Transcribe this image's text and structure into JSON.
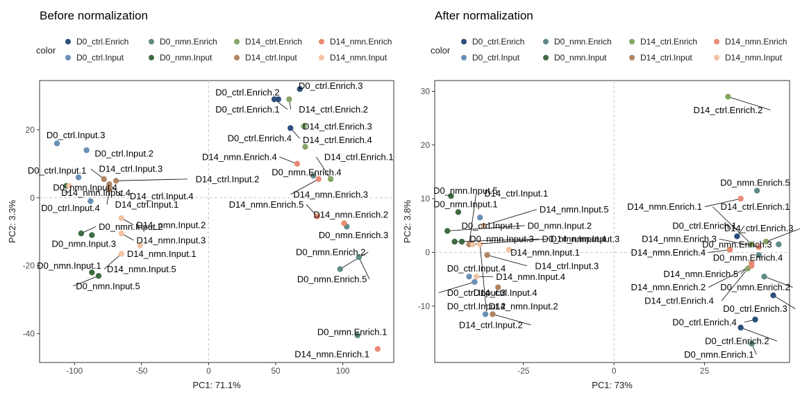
{
  "colors": {
    "D0_ctrl.Enrich": "#2c4f7c",
    "D0_ctrl.Input": "#6a8fb5",
    "D0_nmn.Enrich": "#5f8a86",
    "D0_nmn.Input": "#3e6b41",
    "D14_ctrl.Enrich": "#86a567",
    "D14_ctrl.Input": "#b08563",
    "D14_nmn.Enrich": "#e88a76",
    "D14_nmn.Input": "#f2c3a4"
  },
  "chart_data": [
    {
      "type": "scatter",
      "title": "Before normalization",
      "xlabel": "PC1: 71.1%",
      "ylabel": "PC2: 3.3%",
      "xlim": [
        -126,
        138
      ],
      "ylim": [
        -48.5,
        34.5
      ],
      "xticks": [
        -100,
        -50,
        0,
        50,
        100
      ],
      "yticks": [
        -40,
        -20,
        0,
        20
      ],
      "grid": "dashed zero lines only",
      "legend": {
        "title": "color",
        "position": "top",
        "entries": [
          "D0_ctrl.Enrich",
          "D0_nmn.Enrich",
          "D14_ctrl.Enrich",
          "D14_nmn.Enrich",
          "D0_ctrl.Input",
          "D0_nmn.Input",
          "D14_ctrl.Input",
          "D14_nmn.Input"
        ]
      },
      "points": [
        {
          "label": "D0_ctrl.Enrich.1",
          "group": "D0_ctrl.Enrich",
          "x": 49,
          "y": 29,
          "lx": 29,
          "ly": 26
        },
        {
          "label": "D0_ctrl.Enrich.2",
          "group": "D0_ctrl.Enrich",
          "x": 52,
          "y": 29,
          "lx": 29,
          "ly": 31
        },
        {
          "label": "D0_ctrl.Enrich.3",
          "group": "D0_ctrl.Enrich",
          "x": 68,
          "y": 32,
          "lx": 91,
          "ly": 33
        },
        {
          "label": "D0_ctrl.Enrich.4",
          "group": "D0_ctrl.Enrich",
          "x": 61,
          "y": 20.5,
          "lx": 38,
          "ly": 17.5
        },
        {
          "label": "D0_ctrl.Input.1",
          "group": "D0_ctrl.Input",
          "x": -97,
          "y": 6,
          "lx": -113,
          "ly": 8
        },
        {
          "label": "D0_ctrl.Input.2",
          "group": "D0_ctrl.Input",
          "x": -91,
          "y": 14,
          "lx": -63,
          "ly": 13
        },
        {
          "label": "D0_ctrl.Input.3",
          "group": "D0_ctrl.Input",
          "x": -113,
          "y": 16,
          "lx": -99,
          "ly": 18.5
        },
        {
          "label": "D0_ctrl.Input.4",
          "group": "D0_ctrl.Input",
          "x": -88,
          "y": -1,
          "lx": -103,
          "ly": -3
        },
        {
          "label": "D0_nmn.Enrich.1",
          "group": "D0_nmn.Enrich",
          "x": 111,
          "y": -40.5,
          "lx": 107,
          "ly": -39.5
        },
        {
          "label": "D0_nmn.Enrich.2",
          "group": "D0_nmn.Enrich",
          "x": 98,
          "y": -21,
          "lx": 91,
          "ly": -16
        },
        {
          "label": "D0_nmn.Enrich.3",
          "group": "D0_nmn.Enrich",
          "x": 103,
          "y": -8.5,
          "lx": 108,
          "ly": -11
        },
        {
          "label": "D0_nmn.Enrich.4",
          "group": "D0_nmn.Enrich",
          "x": 78,
          "y": 6.5,
          "lx": 73,
          "ly": 7.5
        },
        {
          "label": "D0_nmn.Enrich.5",
          "group": "D0_nmn.Enrich",
          "x": 112,
          "y": -17.5,
          "lx": 92,
          "ly": -24
        },
        {
          "label": "D0_nmn.Input.1",
          "group": "D0_nmn.Input",
          "x": -87,
          "y": -22,
          "lx": -104,
          "ly": -20
        },
        {
          "label": "D0_nmn.Input.2",
          "group": "D0_nmn.Input",
          "x": -95,
          "y": -10.5,
          "lx": -58,
          "ly": -8.5
        },
        {
          "label": "D0_nmn.Input.3",
          "group": "D0_nmn.Input",
          "x": -87,
          "y": -11,
          "lx": -93,
          "ly": -13.5
        },
        {
          "label": "D0_nmn.Input.4",
          "group": "D0_nmn.Input",
          "x": -106,
          "y": 3.5,
          "lx": -92,
          "ly": 3
        },
        {
          "label": "D0_nmn.Input.5",
          "group": "D0_nmn.Input",
          "x": -82,
          "y": -23,
          "lx": -75,
          "ly": -26
        },
        {
          "label": "D14_ctrl.Enrich.1",
          "group": "D14_ctrl.Enrich",
          "x": 91,
          "y": 5.5,
          "lx": 112,
          "ly": 12
        },
        {
          "label": "D14_ctrl.Enrich.2",
          "group": "D14_ctrl.Enrich",
          "x": 60,
          "y": 29,
          "lx": 93,
          "ly": 26
        },
        {
          "label": "D14_ctrl.Enrich.3",
          "group": "D14_ctrl.Enrich",
          "x": 71,
          "y": 21,
          "lx": 96,
          "ly": 21
        },
        {
          "label": "D14_ctrl.Enrich.4",
          "group": "D14_ctrl.Enrich",
          "x": 72,
          "y": 15,
          "lx": 96,
          "ly": 17
        },
        {
          "label": "D14_ctrl.Input.1",
          "group": "D14_ctrl.Input",
          "x": -74,
          "y": 2.5,
          "lx": -46,
          "ly": -2
        },
        {
          "label": "D14_ctrl.Input.2",
          "group": "D14_ctrl.Input",
          "x": -69,
          "y": 5,
          "lx": 14,
          "ly": 5.5
        },
        {
          "label": "D14_ctrl.Input.3",
          "group": "D14_ctrl.Input",
          "x": -78,
          "y": 5.5,
          "lx": -58,
          "ly": 8.5
        },
        {
          "label": "D14_ctrl.Input.4",
          "group": "D14_ctrl.Input",
          "x": -74,
          "y": 4,
          "lx": -35,
          "ly": 0.5
        },
        {
          "label": "D14_nmn.Enrich.1",
          "group": "D14_nmn.Enrich",
          "x": 126,
          "y": -44.5,
          "lx": 92,
          "ly": -46
        },
        {
          "label": "D14_nmn.Enrich.2",
          "group": "D14_nmn.Enrich",
          "x": 101,
          "y": -7.5,
          "lx": 106,
          "ly": -5
        },
        {
          "label": "D14_nmn.Enrich.3",
          "group": "D14_nmn.Enrich",
          "x": 82,
          "y": 5.5,
          "lx": 91,
          "ly": 1
        },
        {
          "label": "D14_nmn.Enrich.4",
          "group": "D14_nmn.Enrich",
          "x": 66,
          "y": 10,
          "lx": 23,
          "ly": 12
        },
        {
          "label": "D14_nmn.Enrich.5",
          "group": "D14_nmn.Enrich",
          "x": 81,
          "y": -5.5,
          "lx": 43,
          "ly": -2
        },
        {
          "label": "D14_nmn.Input.1",
          "group": "D14_nmn.Input",
          "x": -51,
          "y": -14,
          "lx": -35,
          "ly": -16.5
        },
        {
          "label": "D14_nmn.Input.2",
          "group": "D14_nmn.Input",
          "x": -65,
          "y": -6,
          "lx": -28,
          "ly": -8
        },
        {
          "label": "D14_nmn.Input.3",
          "group": "D14_nmn.Input",
          "x": -65,
          "y": -10.5,
          "lx": -28,
          "ly": -12.5
        },
        {
          "label": "D14_nmn.Input.4",
          "group": "D14_nmn.Input",
          "x": -104,
          "y": 3.5,
          "lx": -84,
          "ly": 1.5
        },
        {
          "label": "D14_nmn.Input.5",
          "group": "D14_nmn.Input",
          "x": -65,
          "y": -16.5,
          "lx": -50,
          "ly": -21
        }
      ]
    },
    {
      "type": "scatter",
      "title": "After normalization",
      "xlabel": "PC1: 73%",
      "ylabel": "PC2: 3.8%",
      "xlim": [
        -49.5,
        48.5
      ],
      "ylim": [
        -20.5,
        32
      ],
      "xticks": [
        -25,
        0,
        25
      ],
      "yticks": [
        -10,
        0,
        10,
        20,
        30
      ],
      "grid": "dashed zero lines only",
      "legend": {
        "title": "color",
        "position": "top",
        "entries": [
          "D0_ctrl.Enrich",
          "D0_nmn.Enrich",
          "D14_ctrl.Enrich",
          "D14_nmn.Enrich",
          "D0_ctrl.Input",
          "D0_nmn.Input",
          "D14_ctrl.Input",
          "D14_nmn.Input"
        ]
      },
      "points": [
        {
          "label": "D0_ctrl.Enrich.1",
          "group": "D0_ctrl.Enrich",
          "x": 34,
          "y": 3,
          "lx": 25,
          "ly": 5
        },
        {
          "label": "D0_ctrl.Enrich.2",
          "group": "D0_ctrl.Enrich",
          "x": 35,
          "y": -14,
          "lx": 34,
          "ly": -16.5
        },
        {
          "label": "D0_ctrl.Enrich.3",
          "group": "D0_ctrl.Enrich",
          "x": 44,
          "y": -8,
          "lx": 39,
          "ly": -10.5
        },
        {
          "label": "D0_ctrl.Enrich.4",
          "group": "D0_ctrl.Enrich",
          "x": 39,
          "y": -12.5,
          "lx": 25,
          "ly": -13
        },
        {
          "label": "D0_ctrl.Input.1",
          "group": "D0_ctrl.Input",
          "x": -37,
          "y": 6.5,
          "lx": -34,
          "ly": 5
        },
        {
          "label": "D0_ctrl.Input.2",
          "group": "D0_ctrl.Input",
          "x": -35.5,
          "y": -11.5,
          "lx": -38,
          "ly": -10
        },
        {
          "label": "D0_ctrl.Input.3",
          "group": "D0_ctrl.Input",
          "x": -38.5,
          "y": -5.5,
          "lx": -38,
          "ly": -7.5
        },
        {
          "label": "D0_ctrl.Input.4",
          "group": "D0_ctrl.Input",
          "x": -40,
          "y": -4.5,
          "lx": -38,
          "ly": -3
        },
        {
          "label": "D0_nmn.Enrich.1",
          "group": "D0_nmn.Enrich",
          "x": 38,
          "y": -17,
          "lx": 29,
          "ly": -19
        },
        {
          "label": "D0_nmn.Enrich.2",
          "group": "D0_nmn.Enrich",
          "x": 41.5,
          "y": -4.5,
          "lx": 39,
          "ly": -6.5
        },
        {
          "label": "D0_nmn.Enrich.3",
          "group": "D0_nmn.Enrich",
          "x": 45.5,
          "y": 1.5,
          "lx": 34,
          "ly": 1.5
        },
        {
          "label": "D0_nmn.Enrich.4",
          "group": "D0_nmn.Enrich",
          "x": 40,
          "y": -0.5,
          "lx": 37,
          "ly": -1
        },
        {
          "label": "D0_nmn.Enrich.5",
          "group": "D0_nmn.Enrich",
          "x": 39.5,
          "y": 11.5,
          "lx": 39,
          "ly": 13
        },
        {
          "label": "D0_nmn.Input.1",
          "group": "D0_nmn.Input",
          "x": -43,
          "y": 7.5,
          "lx": -41,
          "ly": 9
        },
        {
          "label": "D0_nmn.Input.2",
          "group": "D0_nmn.Input",
          "x": -46,
          "y": 4,
          "lx": -15,
          "ly": 5
        },
        {
          "label": "D0_nmn.Input.3",
          "group": "D0_nmn.Input",
          "x": -42,
          "y": 2,
          "lx": -31,
          "ly": 2.5
        },
        {
          "label": "D0_nmn.Input.4",
          "group": "D0_nmn.Input",
          "x": -44,
          "y": 2,
          "lx": -11,
          "ly": 2.5
        },
        {
          "label": "D0_nmn.Input.5",
          "group": "D0_nmn.Input",
          "x": -45,
          "y": 10.5,
          "lx": -41,
          "ly": 11.5
        },
        {
          "label": "D14_ctrl.Enrich.1",
          "group": "D14_ctrl.Enrich",
          "x": 38,
          "y": 1.5,
          "lx": 39,
          "ly": 8.5
        },
        {
          "label": "D14_ctrl.Enrich.2",
          "group": "D14_ctrl.Enrich",
          "x": 31.5,
          "y": 29,
          "lx": 31.5,
          "ly": 26.5
        },
        {
          "label": "D14_ctrl.Enrich.3",
          "group": "D14_ctrl.Enrich",
          "x": 42,
          "y": 2,
          "lx": 40,
          "ly": 4.5
        },
        {
          "label": "D14_ctrl.Enrich.4",
          "group": "D14_ctrl.Enrich",
          "x": 37,
          "y": -3,
          "lx": 18,
          "ly": -9
        },
        {
          "label": "D14_ctrl.Input.1",
          "group": "D14_ctrl.Input",
          "x": -40,
          "y": 1.5,
          "lx": -27,
          "ly": 11
        },
        {
          "label": "D14_ctrl.Input.2",
          "group": "D14_ctrl.Input",
          "x": -33.5,
          "y": -11.5,
          "lx": -34,
          "ly": -13.5
        },
        {
          "label": "D14_ctrl.Input.3",
          "group": "D14_ctrl.Input",
          "x": -35,
          "y": -0.5,
          "lx": -13,
          "ly": -2.5
        },
        {
          "label": "D14_ctrl.Input.4",
          "group": "D14_ctrl.Input",
          "x": -32,
          "y": -6.5,
          "lx": -30,
          "ly": -7.5
        },
        {
          "label": "D14_nmn.Enrich.1",
          "group": "D14_nmn.Enrich",
          "x": 35,
          "y": 10,
          "lx": 14,
          "ly": 8.5
        },
        {
          "label": "D14_nmn.Enrich.2",
          "group": "D14_nmn.Enrich",
          "x": 38,
          "y": -2.5,
          "lx": 15,
          "ly": -6.5
        },
        {
          "label": "D14_nmn.Enrich.3",
          "group": "D14_nmn.Enrich",
          "x": 40,
          "y": 1,
          "lx": 18,
          "ly": 2.5
        },
        {
          "label": "D14_nmn.Enrich.4",
          "group": "D14_nmn.Enrich",
          "x": 32,
          "y": 0.5,
          "lx": 15,
          "ly": 0
        },
        {
          "label": "D14_nmn.Enrich.5",
          "group": "D14_nmn.Enrich",
          "x": 38,
          "y": -2,
          "lx": 24,
          "ly": -4
        },
        {
          "label": "D14_nmn.Input.1",
          "group": "D14_nmn.Input",
          "x": -29,
          "y": 0.5,
          "lx": -19,
          "ly": 0
        },
        {
          "label": "D14_nmn.Input.2",
          "group": "D14_nmn.Input",
          "x": -37,
          "y": 1.5,
          "lx": -25,
          "ly": -10
        },
        {
          "label": "D14_nmn.Input.3",
          "group": "D14_nmn.Input",
          "x": -39,
          "y": 1.5,
          "lx": -8,
          "ly": 2.5
        },
        {
          "label": "D14_nmn.Input.4",
          "group": "D14_nmn.Input",
          "x": -38,
          "y": -4.5,
          "lx": -23,
          "ly": -4.5
        },
        {
          "label": "D14_nmn.Input.5",
          "group": "D14_nmn.Input",
          "x": -36,
          "y": 5,
          "lx": -11,
          "ly": 8
        }
      ]
    }
  ]
}
